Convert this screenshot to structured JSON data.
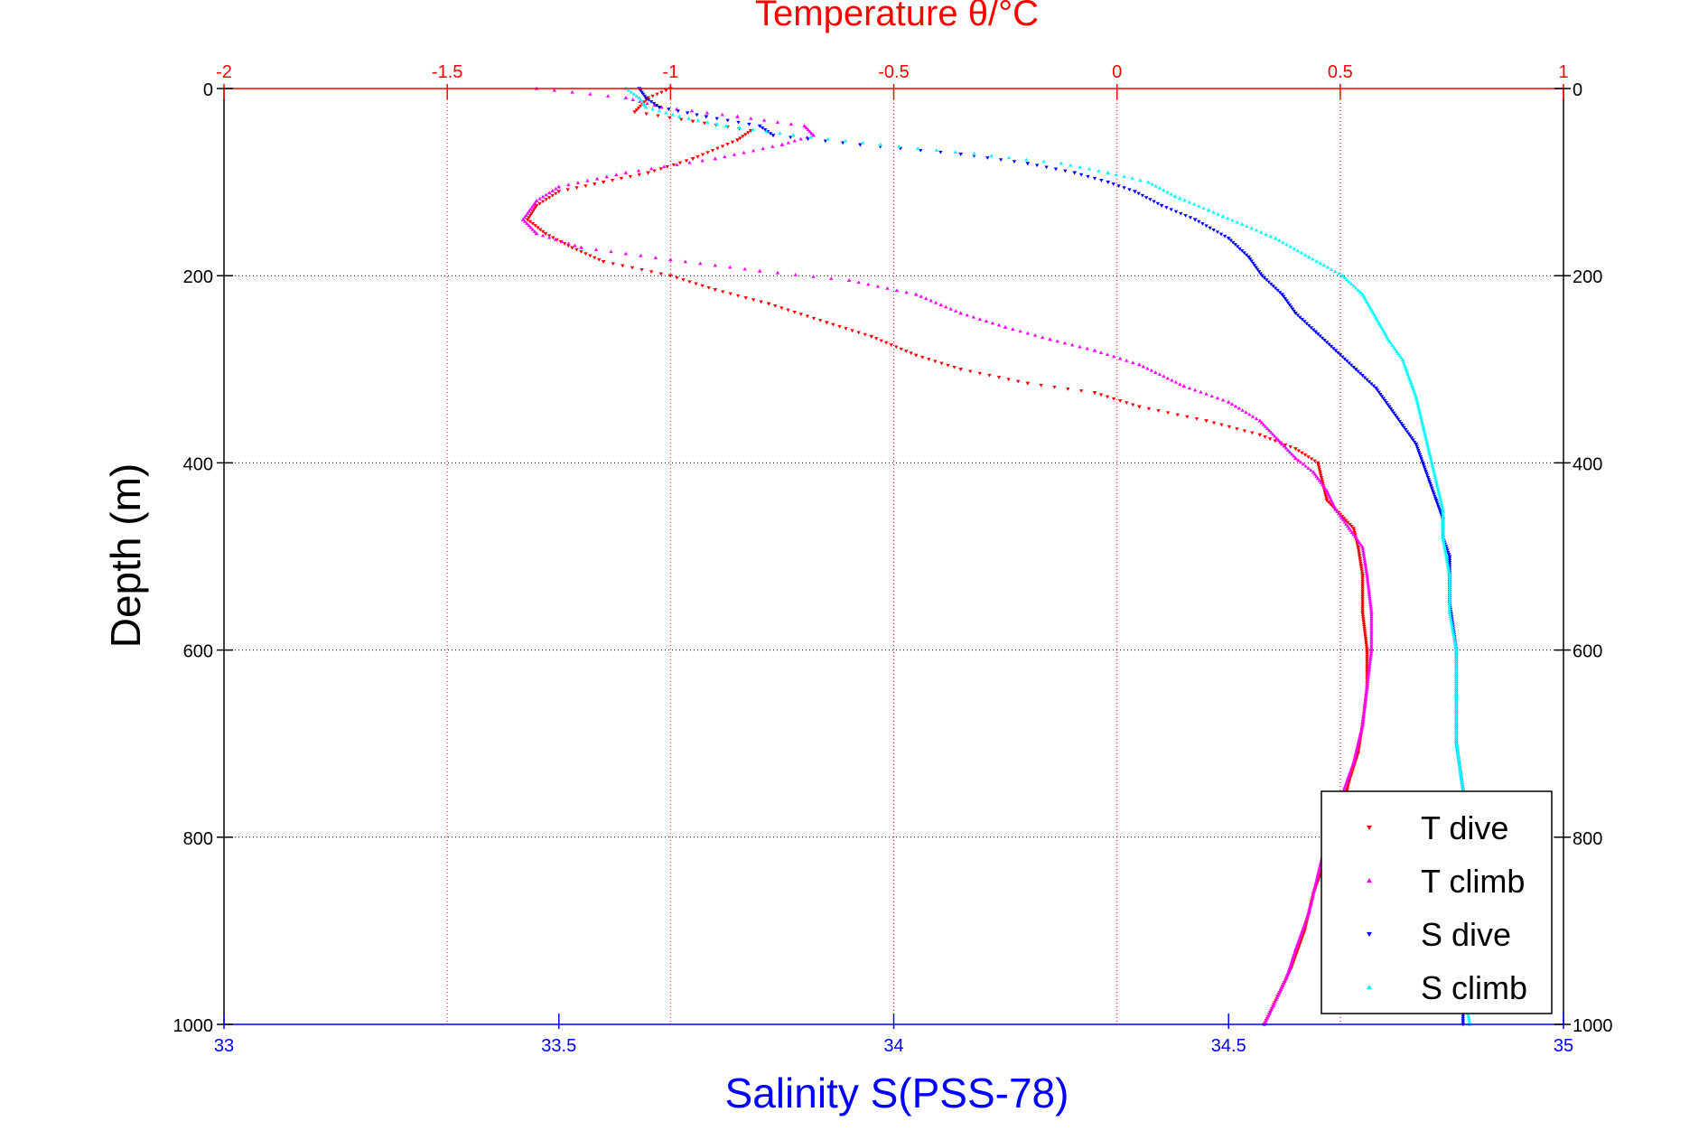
{
  "chart_data": {
    "type": "scatter",
    "title": "",
    "top_xlabel": "Temperature θ/°C",
    "bottom_xlabel": "Salinity S(PSS-78)",
    "ylabel": "Depth (m)",
    "top_xlim": [
      -2,
      1
    ],
    "bottom_xlim": [
      33,
      35
    ],
    "ylim": [
      0,
      1000
    ],
    "y_reversed": true,
    "grid": true,
    "legend_position": "bottom-right",
    "top_ticks": [
      "-2",
      "-1.5",
      "-1",
      "-0.5",
      "0",
      "0.5",
      "1"
    ],
    "top_tick_values": [
      -2,
      -1.5,
      -1,
      -0.5,
      0,
      0.5,
      1
    ],
    "bottom_ticks": [
      "33",
      "33.5",
      "34",
      "34.5",
      "35"
    ],
    "bottom_tick_values": [
      33,
      33.5,
      34,
      34.5,
      35
    ],
    "y_ticks": [
      "0",
      "200",
      "400",
      "600",
      "800",
      "1000"
    ],
    "y_tick_values": [
      0,
      200,
      400,
      600,
      800,
      1000
    ],
    "colors": {
      "temperature_axis": "#ff0000",
      "salinity_axis": "#0000ff",
      "t_dive": "#ff0000",
      "t_climb": "#ff00ff",
      "s_dive": "#0000ff",
      "s_climb": "#00ffff"
    },
    "series": [
      {
        "name": "T dive",
        "axis": "temperature",
        "marker": "triangle-down",
        "points": [
          [
            -1.0,
            0
          ],
          [
            -1.05,
            10
          ],
          [
            -1.08,
            25
          ],
          [
            -0.95,
            35
          ],
          [
            -0.82,
            45
          ],
          [
            -0.85,
            55
          ],
          [
            -0.95,
            75
          ],
          [
            -1.05,
            90
          ],
          [
            -1.15,
            100
          ],
          [
            -1.25,
            110
          ],
          [
            -1.3,
            125
          ],
          [
            -1.32,
            140
          ],
          [
            -1.28,
            155
          ],
          [
            -1.22,
            170
          ],
          [
            -1.15,
            185
          ],
          [
            -1.0,
            200
          ],
          [
            -0.9,
            215
          ],
          [
            -0.78,
            230
          ],
          [
            -0.65,
            250
          ],
          [
            -0.55,
            265
          ],
          [
            -0.45,
            285
          ],
          [
            -0.35,
            300
          ],
          [
            -0.2,
            315
          ],
          [
            -0.05,
            325
          ],
          [
            0.05,
            340
          ],
          [
            0.2,
            355
          ],
          [
            0.32,
            370
          ],
          [
            0.4,
            385
          ],
          [
            0.45,
            400
          ],
          [
            0.46,
            420
          ],
          [
            0.47,
            440
          ],
          [
            0.5,
            455
          ],
          [
            0.53,
            470
          ],
          [
            0.54,
            490
          ],
          [
            0.55,
            520
          ],
          [
            0.55,
            560
          ],
          [
            0.56,
            600
          ],
          [
            0.56,
            640
          ],
          [
            0.55,
            680
          ],
          [
            0.54,
            710
          ],
          [
            0.52,
            740
          ],
          [
            0.5,
            780
          ],
          [
            0.47,
            820
          ],
          [
            0.44,
            860
          ],
          [
            0.42,
            900
          ],
          [
            0.39,
            940
          ],
          [
            0.36,
            970
          ],
          [
            0.33,
            1000
          ]
        ]
      },
      {
        "name": "T climb",
        "axis": "temperature",
        "marker": "triangle-up",
        "points": [
          [
            -1.3,
            0
          ],
          [
            -1.1,
            10
          ],
          [
            -1.02,
            20
          ],
          [
            -0.85,
            30
          ],
          [
            -0.7,
            40
          ],
          [
            -0.68,
            50
          ],
          [
            -0.75,
            60
          ],
          [
            -0.9,
            75
          ],
          [
            -1.1,
            90
          ],
          [
            -1.25,
            105
          ],
          [
            -1.3,
            120
          ],
          [
            -1.33,
            140
          ],
          [
            -1.3,
            155
          ],
          [
            -1.2,
            170
          ],
          [
            -1.0,
            183
          ],
          [
            -0.8,
            195
          ],
          [
            -0.6,
            205
          ],
          [
            -0.45,
            220
          ],
          [
            -0.35,
            240
          ],
          [
            -0.25,
            255
          ],
          [
            -0.15,
            268
          ],
          [
            -0.05,
            280
          ],
          [
            0.05,
            295
          ],
          [
            0.15,
            318
          ],
          [
            0.25,
            335
          ],
          [
            0.32,
            355
          ],
          [
            0.37,
            380
          ],
          [
            0.4,
            395
          ],
          [
            0.44,
            410
          ],
          [
            0.47,
            430
          ],
          [
            0.49,
            450
          ],
          [
            0.52,
            470
          ],
          [
            0.55,
            490
          ],
          [
            0.56,
            520
          ],
          [
            0.57,
            560
          ],
          [
            0.57,
            600
          ],
          [
            0.56,
            640
          ],
          [
            0.55,
            680
          ],
          [
            0.53,
            720
          ],
          [
            0.5,
            760
          ],
          [
            0.47,
            800
          ],
          [
            0.45,
            840
          ],
          [
            0.43,
            880
          ],
          [
            0.4,
            920
          ],
          [
            0.38,
            950
          ],
          [
            0.35,
            980
          ],
          [
            0.33,
            1000
          ]
        ]
      },
      {
        "name": "S dive",
        "axis": "salinity",
        "marker": "triangle-down",
        "points": [
          [
            33.62,
            0
          ],
          [
            33.63,
            10
          ],
          [
            33.65,
            20
          ],
          [
            33.72,
            30
          ],
          [
            33.8,
            40
          ],
          [
            33.82,
            50
          ],
          [
            33.95,
            60
          ],
          [
            34.1,
            70
          ],
          [
            34.2,
            80
          ],
          [
            34.27,
            90
          ],
          [
            34.32,
            100
          ],
          [
            34.36,
            110
          ],
          [
            34.4,
            125
          ],
          [
            34.45,
            140
          ],
          [
            34.5,
            160
          ],
          [
            34.53,
            180
          ],
          [
            34.55,
            200
          ],
          [
            34.58,
            220
          ],
          [
            34.6,
            240
          ],
          [
            34.63,
            260
          ],
          [
            34.66,
            280
          ],
          [
            34.69,
            300
          ],
          [
            34.72,
            320
          ],
          [
            34.74,
            340
          ],
          [
            34.76,
            360
          ],
          [
            34.78,
            380
          ],
          [
            34.79,
            400
          ],
          [
            34.8,
            420
          ],
          [
            34.81,
            440
          ],
          [
            34.82,
            460
          ],
          [
            34.82,
            480
          ],
          [
            34.83,
            500
          ],
          [
            34.83,
            550
          ],
          [
            34.84,
            600
          ],
          [
            34.84,
            650
          ],
          [
            34.84,
            700
          ],
          [
            34.85,
            750
          ],
          [
            34.85,
            800
          ],
          [
            34.85,
            850
          ],
          [
            34.85,
            900
          ],
          [
            34.85,
            950
          ],
          [
            34.85,
            1000
          ]
        ]
      },
      {
        "name": "S climb",
        "axis": "salinity",
        "marker": "triangle-up",
        "points": [
          [
            33.6,
            0
          ],
          [
            33.62,
            10
          ],
          [
            33.63,
            20
          ],
          [
            33.68,
            30
          ],
          [
            33.75,
            40
          ],
          [
            33.85,
            50
          ],
          [
            33.98,
            60
          ],
          [
            34.12,
            70
          ],
          [
            34.25,
            80
          ],
          [
            34.32,
            90
          ],
          [
            34.38,
            100
          ],
          [
            34.42,
            115
          ],
          [
            34.47,
            130
          ],
          [
            34.52,
            145
          ],
          [
            34.57,
            160
          ],
          [
            34.62,
            180
          ],
          [
            34.67,
            200
          ],
          [
            34.7,
            220
          ],
          [
            34.72,
            245
          ],
          [
            34.74,
            270
          ],
          [
            34.76,
            290
          ],
          [
            34.77,
            310
          ],
          [
            34.78,
            330
          ],
          [
            34.79,
            360
          ],
          [
            34.8,
            390
          ],
          [
            34.81,
            420
          ],
          [
            34.82,
            450
          ],
          [
            34.82,
            480
          ],
          [
            34.83,
            520
          ],
          [
            34.83,
            560
          ],
          [
            34.84,
            600
          ],
          [
            34.84,
            650
          ],
          [
            34.84,
            700
          ],
          [
            34.85,
            750
          ],
          [
            34.85,
            800
          ],
          [
            34.85,
            850
          ],
          [
            34.85,
            900
          ],
          [
            34.85,
            950
          ],
          [
            34.86,
            1000
          ]
        ]
      }
    ]
  }
}
